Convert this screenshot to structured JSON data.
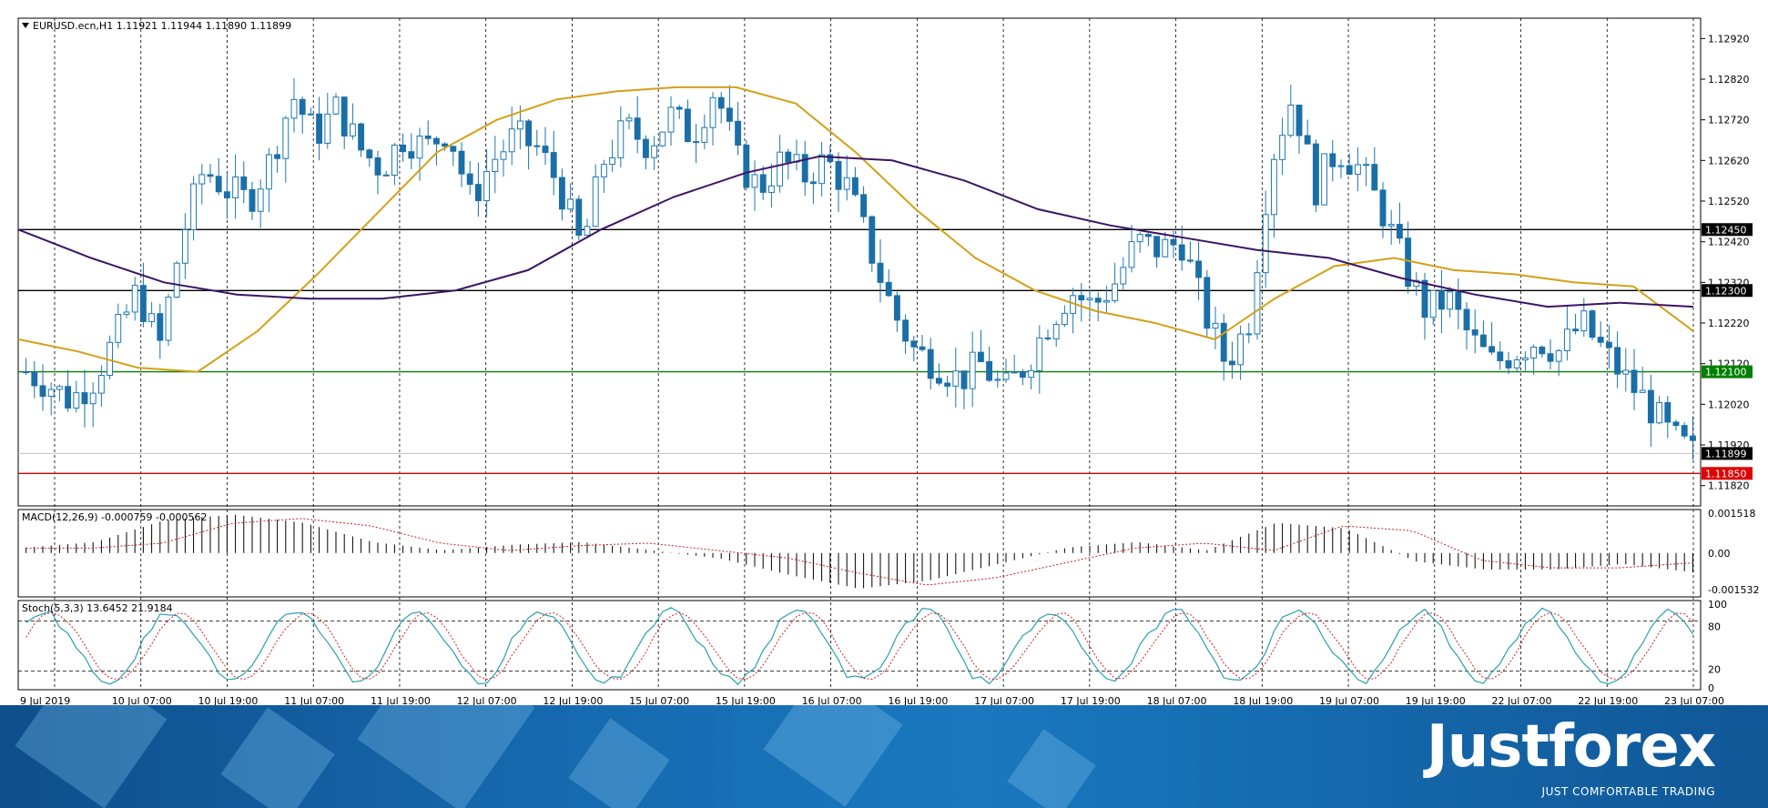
{
  "symbol_header": "EURUSD.ecn,H1  1.11921 1.11944 1.11890 1.11899",
  "macd_header": "MACD(12,26,9) -0.000759 -0.000562",
  "stoch_header": "Stoch(5,3,3) 13.6452 21.9184",
  "brand": {
    "logo": "Justforex",
    "tagline": "JUST COMFORTABLE TRADING"
  },
  "colors": {
    "bull": "#1f77b4",
    "bear": "#1a6fa8",
    "ma_fast": "#d4a017",
    "ma_slow": "#3c1464",
    "support": "#008000",
    "stop": "#e00000",
    "stoch_main": "#2aa0b0",
    "stoch_signal": "#cc2222",
    "macd_signal": "#cc2222"
  },
  "chart_data": {
    "type": "candlestick",
    "title": "EURUSD.ecn,H1",
    "price_axis": {
      "ylim": [
        1.1177,
        1.1297
      ],
      "ticks": [
        "1.12920",
        "1.12820",
        "1.12720",
        "1.12620",
        "1.12520",
        "1.12420",
        "1.12320",
        "1.12220",
        "1.12120",
        "1.12020",
        "1.11920",
        "1.11820"
      ]
    },
    "time_axis": {
      "labels": [
        "9 Jul 2019",
        "10 Jul 07:00",
        "10 Jul 19:00",
        "11 Jul 07:00",
        "11 Jul 19:00",
        "12 Jul 07:00",
        "12 Jul 19:00",
        "15 Jul 07:00",
        "15 Jul 19:00",
        "16 Jul 07:00",
        "16 Jul 19:00",
        "17 Jul 07:00",
        "17 Jul 19:00",
        "18 Jul 07:00",
        "18 Jul 19:00",
        "19 Jul 07:00",
        "19 Jul 19:00",
        "22 Jul 07:00",
        "22 Jul 19:00",
        "23 Jul 07:00"
      ]
    },
    "current_price": {
      "label": "1.11899",
      "value": 1.11899
    },
    "levels": [
      {
        "label": "1.12450",
        "value": 1.1245,
        "color": "#000000"
      },
      {
        "label": "1.12300",
        "value": 1.123,
        "color": "#000000"
      },
      {
        "label": "1.12100",
        "value": 1.121,
        "color": "#008000"
      },
      {
        "label": "1.11850",
        "value": 1.1185,
        "color": "#e00000"
      }
    ],
    "close_path": [
      1.121,
      1.1207,
      1.1203,
      1.1208,
      1.1218,
      1.123,
      1.1216,
      1.1243,
      1.126,
      1.1255,
      1.1252,
      1.1262,
      1.1278,
      1.1268,
      1.1275,
      1.1265,
      1.126,
      1.1268,
      1.1265,
      1.127,
      1.1252,
      1.1262,
      1.1268,
      1.1265,
      1.1256,
      1.124,
      1.1262,
      1.127,
      1.1266,
      1.1273,
      1.1268,
      1.128,
      1.1262,
      1.1255,
      1.1262,
      1.1258,
      1.1262,
      1.1255,
      1.124,
      1.1225,
      1.1215,
      1.1212,
      1.1208,
      1.1212,
      1.1205,
      1.1212,
      1.1222,
      1.123,
      1.1226,
      1.1232,
      1.1242,
      1.124,
      1.1242,
      1.1225,
      1.1212,
      1.1222,
      1.1262,
      1.1278,
      1.1255,
      1.1265,
      1.126,
      1.125,
      1.1236,
      1.1225,
      1.1228,
      1.1218,
      1.1212,
      1.1215,
      1.1218,
      1.1215,
      1.1222,
      1.1215,
      1.1208,
      1.1202,
      1.1194,
      1.119
    ],
    "moving_averages": [
      {
        "name": "",
        "color": "#d4a017",
        "values": [
          1.1218,
          1.1215,
          1.1211,
          1.121,
          1.122,
          1.1234,
          1.1249,
          1.1264,
          1.1272,
          1.1277,
          1.1279,
          1.128,
          1.128,
          1.1276,
          1.1264,
          1.125,
          1.1238,
          1.123,
          1.1225,
          1.1222,
          1.1218,
          1.1228,
          1.1236,
          1.1238,
          1.1235,
          1.1234,
          1.1232,
          1.1231,
          1.122
        ]
      },
      {
        "name": "",
        "color": "#3c1464",
        "values": [
          1.1245,
          1.1238,
          1.1232,
          1.1229,
          1.1228,
          1.1228,
          1.123,
          1.1235,
          1.1245,
          1.1253,
          1.1259,
          1.1263,
          1.1262,
          1.1257,
          1.125,
          1.1246,
          1.1243,
          1.124,
          1.1238,
          1.1233,
          1.1229,
          1.1226,
          1.1227,
          1.1226
        ]
      }
    ],
    "macd": {
      "ylim": [
        -0.001532,
        0.001518
      ],
      "ticks": [
        "0.001518",
        "0.00",
        "-0.001532"
      ]
    },
    "stochastic": {
      "ylim": [
        0,
        100
      ],
      "ticks": [
        "100",
        "80",
        "20",
        "0"
      ]
    }
  }
}
